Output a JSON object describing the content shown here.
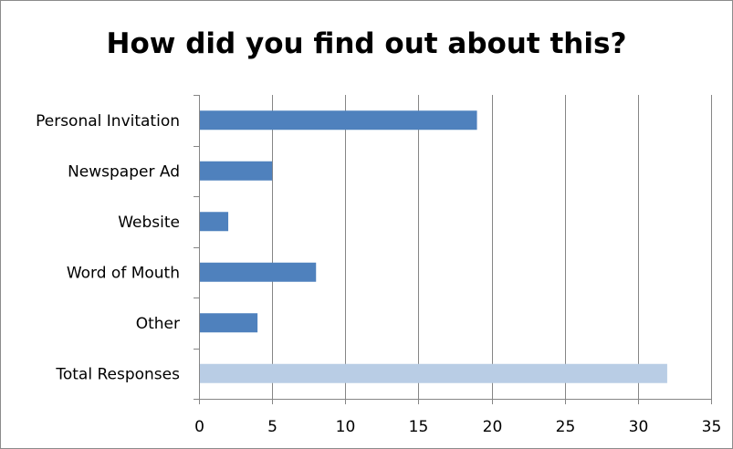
{
  "chart_data": {
    "type": "bar",
    "orientation": "horizontal",
    "title": "How did you find out about this?",
    "xlabel": "",
    "ylabel": "",
    "categories": [
      "Personal Invitation",
      "Newspaper Ad",
      "Website",
      "Word of Mouth",
      "Other",
      "Total Responses"
    ],
    "values": [
      19,
      5,
      2,
      8,
      4,
      32
    ],
    "bar_colors": [
      "#4f81bd",
      "#4f81bd",
      "#4f81bd",
      "#4f81bd",
      "#4f81bd",
      "#b9cde5"
    ],
    "xlim": [
      0,
      35
    ],
    "x_ticks": [
      0,
      5,
      10,
      15,
      20,
      25,
      30,
      35
    ],
    "grid": "vertical",
    "legend": "none"
  }
}
